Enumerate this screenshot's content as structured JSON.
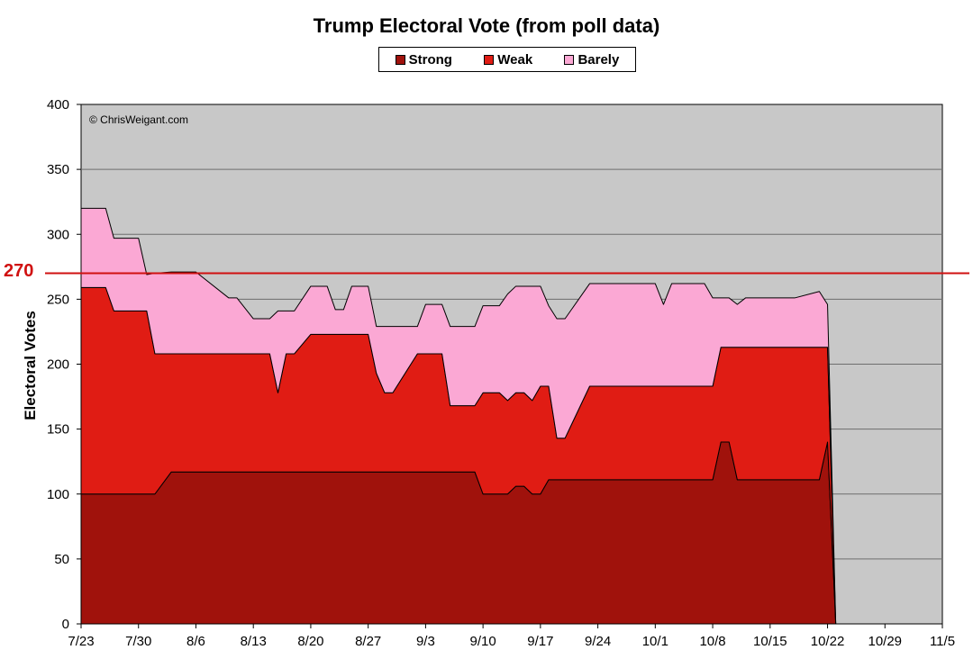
{
  "chart_data": {
    "type": "area",
    "stacked": true,
    "title": "Trump Electoral Vote (from poll data)",
    "ylabel": "Electoral Votes",
    "xlabel": "",
    "ylim": [
      0,
      400
    ],
    "yticks": [
      0,
      50,
      100,
      150,
      200,
      250,
      300,
      350,
      400
    ],
    "x_tick_labels": [
      "7/23",
      "7/30",
      "8/6",
      "8/13",
      "8/20",
      "8/27",
      "9/3",
      "9/10",
      "9/17",
      "9/24",
      "10/1",
      "10/8",
      "10/15",
      "10/22",
      "10/29",
      "11/5"
    ],
    "grid": true,
    "legend_position": "top-center",
    "watermark": "© ChrisWeigant.com",
    "reference_line": {
      "value": 270,
      "label": "270",
      "color": "#d01010"
    },
    "x": [
      "7/23",
      "7/26",
      "7/27",
      "7/30",
      "7/31",
      "8/1",
      "8/3",
      "8/6",
      "8/10",
      "8/11",
      "8/13",
      "8/15",
      "8/16",
      "8/17",
      "8/18",
      "8/20",
      "8/22",
      "8/23",
      "8/24",
      "8/25",
      "8/27",
      "8/28",
      "8/29",
      "8/30",
      "9/2",
      "9/3",
      "9/4",
      "9/5",
      "9/6",
      "9/9",
      "9/10",
      "9/12",
      "9/13",
      "9/14",
      "9/15",
      "9/16",
      "9/17",
      "9/18",
      "9/19",
      "9/20",
      "9/23",
      "9/24",
      "9/30",
      "10/1",
      "10/2",
      "10/3",
      "10/7",
      "10/8",
      "10/9",
      "10/10",
      "10/11",
      "10/12",
      "10/17",
      "10/18",
      "10/21",
      "10/22",
      "10/23",
      "11/5"
    ],
    "series": [
      {
        "name": "Strong",
        "color": "#a0120c",
        "values": [
          100,
          100,
          100,
          100,
          100,
          100,
          117,
          117,
          117,
          117,
          117,
          117,
          117,
          117,
          117,
          117,
          117,
          117,
          117,
          117,
          117,
          117,
          117,
          117,
          117,
          117,
          117,
          117,
          117,
          117,
          100,
          100,
          100,
          106,
          106,
          100,
          100,
          111,
          111,
          111,
          111,
          111,
          111,
          111,
          111,
          111,
          111,
          111,
          140,
          140,
          111,
          111,
          111,
          111,
          111,
          140,
          0,
          0
        ]
      },
      {
        "name": "Weak",
        "color": "#e01c14",
        "values": [
          159,
          159,
          141,
          141,
          141,
          108,
          91,
          91,
          91,
          91,
          91,
          91,
          61,
          91,
          91,
          106,
          106,
          106,
          106,
          106,
          106,
          76,
          61,
          61,
          91,
          91,
          91,
          91,
          51,
          51,
          78,
          78,
          72,
          72,
          72,
          72,
          83,
          72,
          32,
          32,
          72,
          72,
          72,
          72,
          72,
          72,
          72,
          72,
          73,
          73,
          102,
          102,
          102,
          102,
          102,
          73,
          0,
          0
        ]
      },
      {
        "name": "Barely",
        "color": "#fba8d4",
        "values": [
          61,
          61,
          56,
          56,
          28,
          62,
          63,
          63,
          43,
          43,
          27,
          27,
          63,
          33,
          33,
          37,
          37,
          19,
          19,
          37,
          37,
          36,
          51,
          51,
          21,
          38,
          38,
          38,
          61,
          61,
          67,
          67,
          82,
          82,
          82,
          88,
          77,
          62,
          92,
          92,
          79,
          79,
          79,
          79,
          63,
          79,
          79,
          68,
          38,
          38,
          33,
          38,
          38,
          38,
          43,
          33,
          0,
          0
        ]
      }
    ]
  },
  "legend": [
    {
      "label": "Strong",
      "color": "#a0120c"
    },
    {
      "label": "Weak",
      "color": "#e01c14"
    },
    {
      "label": "Barely",
      "color": "#fba8d4"
    }
  ]
}
